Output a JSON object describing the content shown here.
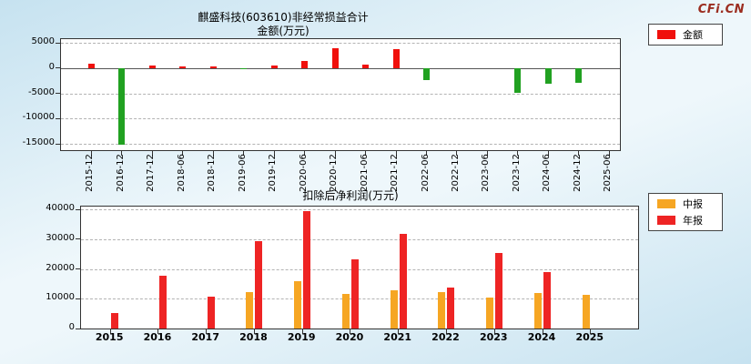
{
  "logo": "CFi.CN",
  "chart_data": [
    {
      "type": "bar",
      "title": "麒盛科技(603610)非经常损益合计",
      "subtitle": "金额(万元)",
      "categories": [
        "2015-12",
        "2016-12",
        "2017-12",
        "2018-06",
        "2018-12",
        "2019-06",
        "2019-12",
        "2020-06",
        "2020-12",
        "2021-06",
        "2021-12",
        "2022-06",
        "2022-12",
        "2023-06",
        "2023-12",
        "2024-06",
        "2024-12",
        "2025-06"
      ],
      "series": [
        {
          "name": "金额",
          "values": [
            800,
            -15200,
            600,
            350,
            300,
            -250,
            600,
            1400,
            3900,
            700,
            3800,
            -2300,
            null,
            null,
            -4900,
            -3100,
            -2900,
            null
          ]
        }
      ],
      "positive_color": "#f0100c",
      "negative_color": "#21a121",
      "ylim": [
        -16250,
        5750
      ],
      "yticks": [
        5000,
        0,
        -5000,
        -10000,
        -15000
      ],
      "grid": "dashed-horizontal",
      "legend_position": "outside-right",
      "legend": [
        {
          "label": "金额",
          "color": "#f0100c"
        }
      ]
    },
    {
      "type": "bar",
      "title": "扣除后净利润(万元)",
      "categories": [
        "2015",
        "2016",
        "2017",
        "2018",
        "2019",
        "2020",
        "2021",
        "2022",
        "2023",
        "2024",
        "2025"
      ],
      "series": [
        {
          "name": "中报",
          "color": "#f6a623",
          "values": [
            null,
            null,
            null,
            12100,
            16000,
            11500,
            13000,
            12100,
            10300,
            11800,
            11200
          ]
        },
        {
          "name": "年报",
          "color": "#ee2424",
          "values": [
            5200,
            17600,
            10600,
            29400,
            39400,
            23300,
            31800,
            13900,
            25500,
            19100,
            null
          ]
        }
      ],
      "ylim": [
        0,
        41000
      ],
      "yticks": [
        0,
        10000,
        20000,
        30000,
        40000
      ],
      "grid": "dashed-horizontal",
      "legend_position": "outside-right",
      "legend": [
        {
          "label": "中报",
          "color": "#f6a623"
        },
        {
          "label": "年报",
          "color": "#ee2424"
        }
      ]
    }
  ]
}
